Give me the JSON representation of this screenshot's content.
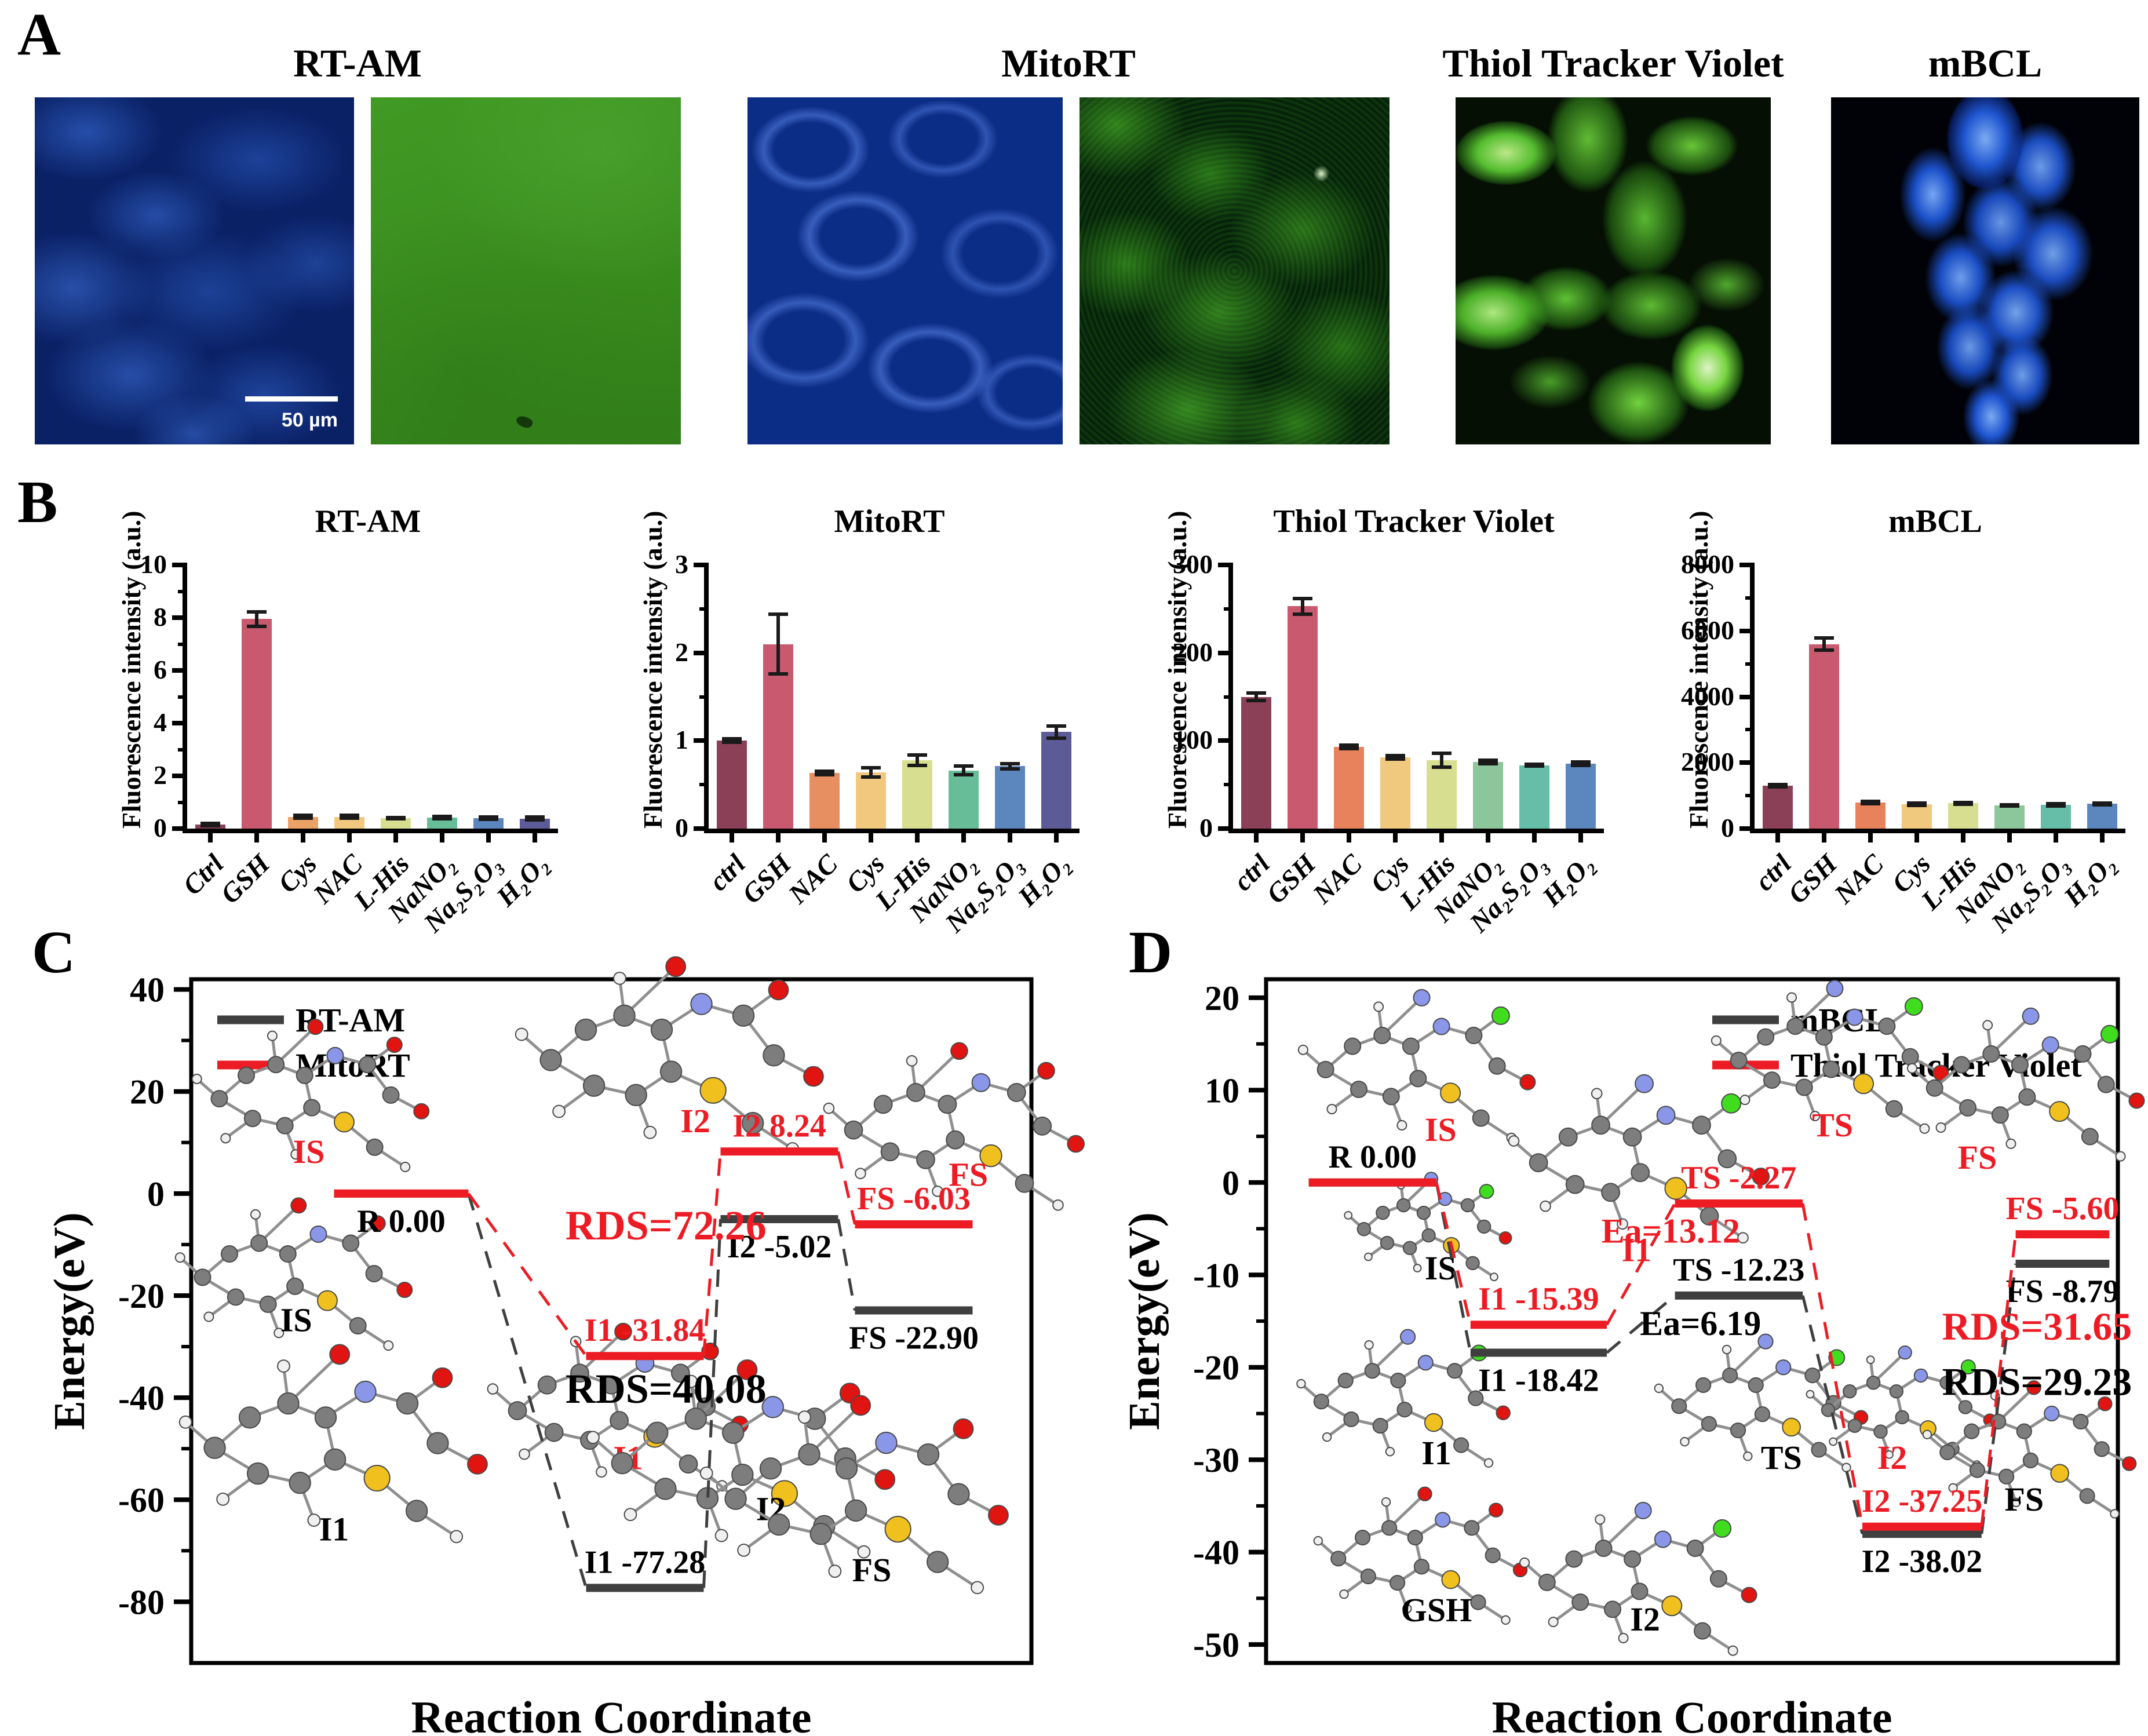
{
  "panels": {
    "a_label": "A",
    "b_label": "B",
    "c_label": "C",
    "d_label": "D"
  },
  "accent": {
    "red": "#ED1C24",
    "gray_line": "#3F3F3F",
    "black": "#000000"
  },
  "panel_a": {
    "titles": [
      "RT-AM",
      "MitoRT",
      "Thiol Tracker Violet",
      "mBCL"
    ],
    "scale_bar": "50 µm",
    "images": [
      {
        "name": "rt-am-blue-channel-image",
        "style": "m-rtam-blue"
      },
      {
        "name": "rt-am-green-channel-image",
        "style": "m-rtam-green"
      },
      {
        "name": "mitort-blue-channel-image",
        "style": "m-mitort-blue"
      },
      {
        "name": "mitort-green-channel-image",
        "style": "m-mitort-green"
      },
      {
        "name": "thiol-tracker-violet-image",
        "style": "m-ttv-green"
      },
      {
        "name": "mbcl-image",
        "style": "m-mbcl-blue"
      }
    ]
  },
  "panel_b": {
    "ylabel": "Fluorescence intensity (a.u.)"
  },
  "molecule_palette": {
    "C": "#7d7d7d",
    "H": "#f0f0f0",
    "O": "#e01410",
    "N": "#8a97e8",
    "S": "#f0c11e",
    "Cl": "#3fdd1e"
  },
  "chart_data": {
    "bar_charts": [
      {
        "type": "bar",
        "title": "RT-AM",
        "ylabel": "Fluorescence intensity (a.u.)",
        "ylim": [
          0,
          10
        ],
        "yticks": [
          0,
          2,
          4,
          6,
          8,
          10
        ],
        "minor_step": 1,
        "categories": [
          "Ctrl",
          "GSH",
          "Cys",
          "NAC",
          "L-His",
          "NaNO₂",
          "Na₂S₂O₃",
          "H₂O₂"
        ],
        "values": [
          0.15,
          7.95,
          0.45,
          0.45,
          0.4,
          0.42,
          0.4,
          0.38
        ],
        "errors": [
          0.05,
          0.28,
          0.05,
          0.05,
          0.02,
          0.04,
          0.04,
          0.05
        ],
        "colors": [
          "#8B4057",
          "#C9596E",
          "#EBA266",
          "#F2C87F",
          "#D7DE90",
          "#66BD98",
          "#5C87BE",
          "#5D5B97"
        ]
      },
      {
        "type": "bar",
        "title": "MitoRT",
        "ylabel": "Fluorescence intensity (a.u.)",
        "ylim": [
          0,
          3
        ],
        "yticks": [
          0,
          1,
          2,
          3
        ],
        "minor_step": 0.5,
        "categories": [
          "ctrl",
          "GSH",
          "NAC",
          "Cys",
          "L-His",
          "NaNO₂",
          "Na₂S₂O₃",
          "H₂O₂"
        ],
        "values": [
          1.0,
          2.1,
          0.63,
          0.64,
          0.78,
          0.66,
          0.71,
          1.1
        ],
        "errors": [
          0.02,
          0.34,
          0.02,
          0.05,
          0.06,
          0.05,
          0.03,
          0.07
        ],
        "colors": [
          "#8B4057",
          "#C9596E",
          "#E88F62",
          "#F2C87F",
          "#D7DE90",
          "#66BD98",
          "#5C87BE",
          "#5D5B97"
        ]
      },
      {
        "type": "bar",
        "title": "Thiol Tracker Violet",
        "ylabel": "Fluorescence intensity (a.u.)",
        "ylim": [
          0,
          300
        ],
        "yticks": [
          0,
          100,
          200,
          300
        ],
        "minor_step": 50,
        "categories": [
          "ctrl",
          "GSH",
          "NAC",
          "Cys",
          "L-His",
          "NaNO₂",
          "Na₂S₂O₃",
          "H₂O₂"
        ],
        "values": [
          150,
          253,
          93,
          81,
          78,
          76,
          72,
          74
        ],
        "errors": [
          4,
          9,
          2,
          2,
          8,
          2,
          1,
          2
        ],
        "colors": [
          "#8B4057",
          "#C9596E",
          "#E8825C",
          "#F0C87E",
          "#D7DE90",
          "#8CC79B",
          "#66BDA8",
          "#5C87BE"
        ]
      },
      {
        "type": "bar",
        "title": "mBCL",
        "ylabel": "Fluorescence intensity (a.u.)",
        "ylim": [
          0,
          8000
        ],
        "yticks": [
          0,
          2000,
          4000,
          6000,
          8000
        ],
        "minor_step": 1000,
        "categories": [
          "ctrl",
          "GSH",
          "NAC",
          "Cys",
          "L-His",
          "NaNO₂",
          "Na₂S₂O₃",
          "H₂O₂"
        ],
        "values": [
          1300,
          5600,
          790,
          740,
          770,
          700,
          720,
          750
        ],
        "errors": [
          40,
          180,
          40,
          30,
          30,
          20,
          30,
          30
        ],
        "colors": [
          "#8B4057",
          "#C9596E",
          "#E8825C",
          "#F0C87E",
          "#D7DE90",
          "#8CC79B",
          "#66BDA8",
          "#5C87BE"
        ]
      }
    ],
    "energy_diagrams": [
      {
        "type": "line",
        "panel": "C",
        "ylabel": "Energy(eV)",
        "xlabel": "Reaction Coordinate",
        "ylim": [
          -92,
          42
        ],
        "yticks": [
          40,
          20,
          0,
          -20,
          -40,
          -60,
          -80
        ],
        "legend_pos": "top-left",
        "legend": [
          {
            "label": "RT-AM",
            "color": "#3F3F3F"
          },
          {
            "label": "MitoRT",
            "color": "#ED1C24"
          }
        ],
        "series": [
          {
            "name": "RT-AM",
            "color": "#3F3F3F",
            "levels": [
              {
                "id": "R",
                "energy": 0.0,
                "label": "",
                "label_color": "#000000",
                "label_side": "below",
                "x": [
                  0.17,
                  0.33
                ]
              },
              {
                "id": "I1",
                "energy": -77.28,
                "label": "I1 -77.28",
                "label_color": "#000000",
                "label_side": "above",
                "x": [
                  0.47,
                  0.61
                ]
              },
              {
                "id": "I2",
                "energy": -5.02,
                "label": "I2 -5.02",
                "label_color": "#000000",
                "label_side": "below",
                "x": [
                  0.63,
                  0.77
                ]
              },
              {
                "id": "FS",
                "energy": -22.9,
                "label": "FS -22.90",
                "label_color": "#000000",
                "label_side": "below",
                "x": [
                  0.79,
                  0.93
                ]
              }
            ]
          },
          {
            "name": "MitoRT",
            "color": "#ED1C24",
            "levels": [
              {
                "id": "R",
                "energy": 0.0,
                "label": "R 0.00",
                "label_color": "#000000",
                "label_side": "below",
                "x": [
                  0.17,
                  0.33
                ]
              },
              {
                "id": "I1",
                "energy": -31.84,
                "label": "I1 -31.84",
                "label_color": "#ED1C24",
                "label_side": "above",
                "x": [
                  0.47,
                  0.61
                ]
              },
              {
                "id": "I2",
                "energy": 8.24,
                "label": "I2 8.24",
                "label_color": "#ED1C24",
                "label_side": "above",
                "x": [
                  0.63,
                  0.77
                ]
              },
              {
                "id": "FS",
                "energy": -6.03,
                "label": "FS -6.03",
                "label_color": "#ED1C24",
                "label_side": "above",
                "x": [
                  0.79,
                  0.93
                ]
              }
            ]
          }
        ],
        "annotations": [
          {
            "text": "RDS=72.26",
            "color": "#ED1C24",
            "x": 0.565,
            "energy": -9,
            "size": 72
          },
          {
            "text": "RDS=40.08",
            "color": "#000000",
            "x": 0.565,
            "energy": -41,
            "size": 72
          }
        ],
        "molecules": [
          {
            "label": "IS",
            "color": "#ED1C24",
            "x": 0.135,
            "energy": 20,
            "label_x": 0.14,
            "label_e": 6,
            "scale": 1.0,
            "variant": 0
          },
          {
            "label": "IS",
            "color": "#000000",
            "x": 0.115,
            "energy": -15,
            "label_x": 0.125,
            "label_e": -27,
            "scale": 1.0,
            "variant": 0
          },
          {
            "label": "I1",
            "color": "#000000",
            "x": 0.16,
            "energy": -48,
            "label_x": 0.17,
            "label_e": -68,
            "scale": 1.3,
            "variant": 0
          },
          {
            "label": "I2",
            "color": "#ED1C24",
            "x": 0.56,
            "energy": 28,
            "label_x": 0.6,
            "label_e": 12,
            "scale": 1.3,
            "variant": 0
          },
          {
            "label": "I1",
            "color": "#ED1C24",
            "x": 0.5,
            "energy": -41,
            "label_x": 0.52,
            "label_e": -54,
            "scale": 1.1,
            "variant": 0
          },
          {
            "label": "I2",
            "color": "#000000",
            "x": 0.645,
            "energy": -51,
            "label_x": 0.69,
            "label_e": -64,
            "scale": 1.3,
            "variant": 0
          },
          {
            "label": "FS",
            "color": "#ED1C24",
            "x": 0.9,
            "energy": 14,
            "label_x": 0.925,
            "label_e": 1.5,
            "scale": 1.1,
            "variant": 0
          },
          {
            "label": "FS",
            "color": "#000000",
            "x": 0.78,
            "energy": -58,
            "label_x": 0.81,
            "label_e": -76,
            "scale": 1.3,
            "variant": 0
          }
        ]
      },
      {
        "type": "line",
        "panel": "D",
        "ylabel": "Energy(eV)",
        "xlabel": "Reaction Coordinate",
        "ylim": [
          -52,
          22
        ],
        "yticks": [
          20,
          10,
          0,
          -10,
          -20,
          -30,
          -40,
          -50
        ],
        "legend_pos": "top-right",
        "legend": [
          {
            "label": "mBCL",
            "color": "#3F3F3F"
          },
          {
            "label": "Thiol Tracker Violet",
            "color": "#ED1C24"
          }
        ],
        "series": [
          {
            "name": "mBCL",
            "color": "#3F3F3F",
            "levels": [
              {
                "id": "R",
                "energy": 0.0,
                "label": "",
                "label_color": "#000000",
                "label_side": "above",
                "x": [
                  0.05,
                  0.2
                ]
              },
              {
                "id": "I1",
                "energy": -18.42,
                "label": "I1 -18.42",
                "label_color": "#000000",
                "label_side": "below",
                "x": [
                  0.24,
                  0.4
                ]
              },
              {
                "id": "TS",
                "energy": -12.23,
                "label": "TS -12.23",
                "label_color": "#000000",
                "label_side": "above",
                "x": [
                  0.48,
                  0.63
                ]
              },
              {
                "id": "I2",
                "energy": -38.02,
                "label": "I2 -38.02",
                "label_color": "#000000",
                "label_side": "below",
                "x": [
                  0.7,
                  0.84
                ]
              },
              {
                "id": "FS",
                "energy": -8.79,
                "label": "FS -8.79",
                "label_color": "#000000",
                "label_side": "below",
                "x": [
                  0.88,
                  0.99
                ]
              }
            ]
          },
          {
            "name": "Thiol Tracker Violet",
            "color": "#ED1C24",
            "levels": [
              {
                "id": "R",
                "energy": 0.0,
                "label": "R 0.00",
                "label_color": "#000000",
                "label_side": "above",
                "x": [
                  0.05,
                  0.2
                ]
              },
              {
                "id": "I1",
                "energy": -15.39,
                "label": "I1 -15.39",
                "label_color": "#ED1C24",
                "label_side": "above",
                "x": [
                  0.24,
                  0.4
                ]
              },
              {
                "id": "TS",
                "energy": -2.27,
                "label": "TS -2.27",
                "label_color": "#ED1C24",
                "label_side": "above",
                "x": [
                  0.48,
                  0.63
                ]
              },
              {
                "id": "I2",
                "energy": -37.25,
                "label": "I2 -37.25",
                "label_color": "#ED1C24",
                "label_side": "above",
                "x": [
                  0.7,
                  0.84
                ]
              },
              {
                "id": "FS",
                "energy": -5.6,
                "label": "FS -5.60",
                "label_color": "#ED1C24",
                "label_side": "above",
                "x": [
                  0.88,
                  0.99
                ]
              }
            ]
          }
        ],
        "annotations": [
          {
            "text": "Ea=13.12",
            "color": "#ED1C24",
            "x": 0.475,
            "energy": -6.5,
            "size": 60
          },
          {
            "text": "Ea=6.19",
            "color": "#000000",
            "x": 0.51,
            "energy": -16.5,
            "size": 60
          },
          {
            "text": "RDS=31.65",
            "color": "#ED1C24",
            "x": 0.905,
            "energy": -17,
            "size": 68
          },
          {
            "text": "RDS=29.23",
            "color": "#000000",
            "x": 0.905,
            "energy": -23,
            "size": 68
          }
        ],
        "molecules": [
          {
            "label": "IS",
            "color": "#ED1C24",
            "x": 0.17,
            "energy": 13,
            "label_x": 0.205,
            "label_e": 4.5,
            "scale": 1.0,
            "variant": 1
          },
          {
            "label": "IS",
            "color": "#000000",
            "x": 0.185,
            "energy": -4.5,
            "label_x": 0.205,
            "label_e": -10.5,
            "scale": 0.7,
            "variant": 1
          },
          {
            "label": "I1",
            "color": "#ED1C24",
            "x": 0.43,
            "energy": 3,
            "label_x": 0.435,
            "label_e": -8.5,
            "scale": 1.1,
            "variant": 1
          },
          {
            "label": "I1",
            "color": "#000000",
            "x": 0.155,
            "energy": -23,
            "label_x": 0.2,
            "label_e": -30.5,
            "scale": 0.9,
            "variant": 1
          },
          {
            "label": "TS",
            "color": "#ED1C24",
            "x": 0.655,
            "energy": 14,
            "label_x": 0.665,
            "label_e": 5,
            "scale": 1.0,
            "variant": 1
          },
          {
            "label": "TS",
            "color": "#000000",
            "x": 0.575,
            "energy": -23.5,
            "label_x": 0.605,
            "label_e": -31,
            "scale": 0.9,
            "variant": 1
          },
          {
            "label": "GSH",
            "color": "#000000",
            "x": 0.175,
            "energy": -40,
            "label_x": 0.2,
            "label_e": -47.5,
            "scale": 0.9,
            "variant": 0
          },
          {
            "label": "I2",
            "color": "#ED1C24",
            "x": 0.74,
            "energy": -24,
            "label_x": 0.735,
            "label_e": -31,
            "scale": 0.8,
            "variant": 1
          },
          {
            "label": "I2",
            "color": "#000000",
            "x": 0.43,
            "energy": -42.5,
            "label_x": 0.445,
            "label_e": -48.5,
            "scale": 1.0,
            "variant": 1
          },
          {
            "label": "FS",
            "color": "#ED1C24",
            "x": 0.885,
            "energy": 11,
            "label_x": 0.835,
            "label_e": 1.5,
            "scale": 1.0,
            "variant": 1
          },
          {
            "label": "FS",
            "color": "#000000",
            "x": 0.89,
            "energy": -28.5,
            "label_x": 0.89,
            "label_e": -35.5,
            "scale": 0.9,
            "variant": 0
          }
        ]
      }
    ]
  }
}
